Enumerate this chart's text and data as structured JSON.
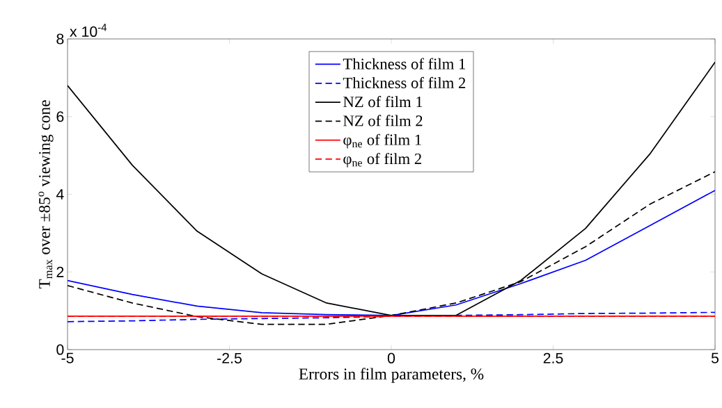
{
  "chart_data": {
    "type": "line",
    "xlabel": "Errors in film parameters, %",
    "ylabel": "T$_{max}$ over ±85$^{o}$ viewing cone",
    "annotations": [
      "x 10$^{-4}$"
    ],
    "x": [
      -5,
      -4,
      -3,
      -2,
      -1,
      0,
      1,
      2,
      3,
      4,
      5
    ],
    "xlim": [
      -5,
      5
    ],
    "ylim": [
      0,
      8
    ],
    "xticks": [
      -5,
      -2.5,
      0,
      2.5,
      5
    ],
    "yticks": [
      0,
      2,
      4,
      6,
      8
    ],
    "legend": "top",
    "series": [
      {
        "name": "Thickness of film 1",
        "color": "#0000ff",
        "line_style": "solid",
        "values": [
          1.78,
          1.42,
          1.12,
          0.95,
          0.9,
          0.88,
          1.15,
          1.7,
          2.3,
          3.2,
          4.1
        ]
      },
      {
        "name": "Thickness of film 2",
        "color": "#0000ff",
        "line_style": "dashed",
        "values": [
          0.72,
          0.74,
          0.78,
          0.8,
          0.82,
          0.86,
          0.88,
          0.9,
          0.93,
          0.94,
          0.96
        ]
      },
      {
        "name": "NZ of film 1",
        "color": "#000000",
        "line_style": "solid",
        "values": [
          6.8,
          4.75,
          3.05,
          1.95,
          1.2,
          0.88,
          0.88,
          1.78,
          3.12,
          5.05,
          7.4
        ]
      },
      {
        "name": "NZ of film 2",
        "color": "#000000",
        "line_style": "dashed",
        "values": [
          1.65,
          1.2,
          0.85,
          0.65,
          0.65,
          0.88,
          1.2,
          1.75,
          2.65,
          3.75,
          4.58
        ]
      },
      {
        "name": "φ$_{ne}$ of film 1",
        "color": "#ff0000",
        "line_style": "solid",
        "values": [
          0.86,
          0.86,
          0.86,
          0.86,
          0.86,
          0.86,
          0.86,
          0.86,
          0.86,
          0.86,
          0.86
        ]
      },
      {
        "name": "φ$_{ne}$ of film 2",
        "color": "#ff0000",
        "line_style": "dashed",
        "values": [
          0.86,
          0.86,
          0.86,
          0.86,
          0.86,
          0.86,
          0.86,
          0.86,
          0.86,
          0.86,
          0.86
        ]
      }
    ]
  }
}
